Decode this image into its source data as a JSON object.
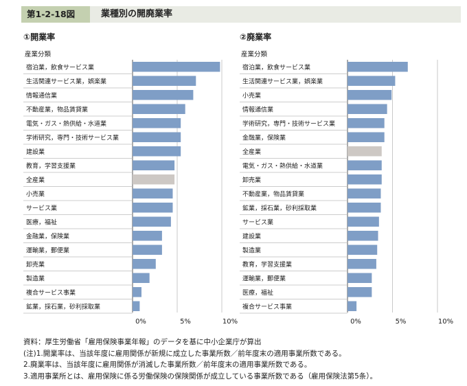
{
  "header": {
    "figure_number": "第1-2-18図",
    "figure_title": "業種別の開廃業率"
  },
  "chart_data": [
    {
      "type": "bar",
      "orientation": "horizontal",
      "title": "①開業率",
      "category_header": "産業分類",
      "xlim": [
        0,
        10
      ],
      "ticks": [
        "0%",
        "5%",
        "10%"
      ],
      "grid": true,
      "bar_color": "#7f9ec6",
      "highlight_color": "#cdc8c4",
      "highlight": "全産業",
      "categories": [
        "宿泊業，飲食サービス業",
        "生活関連サービス業，娯楽業",
        "情報通信業",
        "不動産業，物品賃貸業",
        "電気・ガス・熱供給・水道業",
        "学術研究，専門・技術サービス業",
        "建設業",
        "教育，学習支援業",
        "全産業",
        "小売業",
        "サービス業",
        "医療，福祉",
        "金融業，保険業",
        "運輸業，郵便業",
        "卸売業",
        "製造業",
        "複合サービス事業",
        "鉱業，採石業，砂利採取業"
      ],
      "values": [
        9.8,
        7.1,
        6.8,
        5.9,
        5.4,
        5.4,
        5.4,
        4.7,
        4.7,
        4.5,
        4.5,
        4.3,
        3.3,
        3.3,
        2.6,
        1.9,
        1.0,
        0.8
      ]
    },
    {
      "type": "bar",
      "orientation": "horizontal",
      "title": "②廃業率",
      "category_header": "産業分類",
      "xlim": [
        0,
        10
      ],
      "ticks": [
        "0%",
        "5%",
        "10%"
      ],
      "grid": true,
      "bar_color": "#7f9ec6",
      "highlight_color": "#cdc8c4",
      "highlight": "全産業",
      "categories": [
        "宿泊業，飲食サービス業",
        "生活関連サービス業，娯楽業",
        "小売業",
        "情報通信業",
        "学術研究，専門・技術サービス業",
        "金融業，保険業",
        "全産業",
        "電気・ガス・熱供給・水道業",
        "卸売業",
        "不動産業，物品賃貸業",
        "鉱業，採石業，砂利採取業",
        "サービス業",
        "建設業",
        "製造業",
        "教育，学習支援業",
        "運輸業，郵便業",
        "医療，福祉",
        "複合サービス事業"
      ],
      "values": [
        6.7,
        5.3,
        4.9,
        4.4,
        4.1,
        4.1,
        3.8,
        3.8,
        3.8,
        3.7,
        3.7,
        3.5,
        3.4,
        3.3,
        3.2,
        2.7,
        2.7,
        1.0
      ]
    }
  ],
  "notes": [
    "資料：厚生労働省「雇用保険事業年報」のデータを基に中小企業庁が算出",
    "(注)1.開業率は、当該年度に雇用関係が新規に成立した事業所数／前年度末の適用事業所数である。",
    "2.廃業率は、当該年度に雇用関係が消滅した事業所数／前年度末の適用事業所数である。",
    "3.適用事業所とは、雇用保険に係る労働保険の保険関係が成立している事業所数である（雇用保険法第5条）。"
  ]
}
